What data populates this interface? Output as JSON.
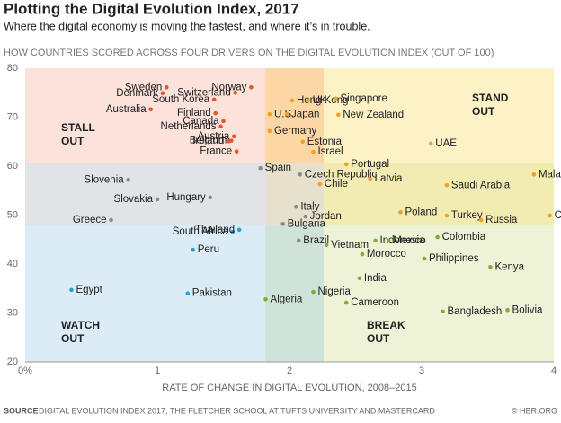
{
  "chart_data": {
    "type": "scatter",
    "title": "Plotting the Digital Evolution Index, 2017",
    "subtitle": "Where the digital economy is moving the fastest, and where it’s in trouble.",
    "header": "HOW COUNTRIES SCORED ACROSS FOUR DRIVERS ON THE DIGITAL EVOLUTION INDEX (OUT OF 100)",
    "xlabel": "RATE OF CHANGE IN DIGITAL EVOLUTION, 2008–2015",
    "source_label": "SOURCE",
    "source": "DIGITAL EVOLUTION INDEX 2017, THE FLETCHER SCHOOL AT TUFTS UNIVERSITY AND MASTERCARD",
    "credit": "© HBR.ORG",
    "xlim": [
      0,
      4
    ],
    "xticks": [
      {
        "value": 0,
        "label": "0%"
      },
      1,
      2,
      3,
      4
    ],
    "ylim": [
      20,
      80
    ],
    "yticks": [
      20,
      30,
      40,
      50,
      60,
      70,
      80
    ],
    "quadrants": [
      [
        "STALL",
        "OUT"
      ],
      [
        "STAND",
        "OUT"
      ],
      [
        "WATCH",
        "OUT"
      ],
      [
        "BREAK",
        "OUT"
      ]
    ],
    "series": [
      {
        "color": "#e2562c",
        "labels": [
          "Sweden",
          "Denmark",
          "Australia",
          "South Korea",
          "Switzerland",
          "Finland",
          "Norway",
          "Netherlands",
          "Canada",
          "Ireland",
          "Austria",
          "Belgium",
          "France"
        ],
        "x": [
          1.07,
          1.04,
          0.95,
          1.43,
          1.59,
          1.44,
          1.71,
          1.48,
          1.5,
          1.54,
          1.58,
          1.56,
          1.6
        ],
        "values": [
          76.1,
          74.9,
          71.6,
          73.6,
          75.0,
          70.8,
          76.1,
          68.1,
          69.2,
          65.1,
          66.1,
          65.2,
          63.0
        ]
      },
      {
        "color": "#f0a12a",
        "labels": [
          "Hong Kong",
          "UK",
          "U.S.",
          "Japan",
          "Germany",
          "Estonia",
          "Israel",
          "Singapore",
          "New Zealand",
          "UAE",
          "Portugal",
          "Malaysia",
          "Latvia",
          "Chile",
          "Saudi Arabia",
          "Poland",
          "Turkey",
          "China",
          "Russia"
        ],
        "x": [
          2.02,
          2.14,
          1.85,
          1.98,
          1.85,
          2.1,
          2.18,
          2.35,
          2.37,
          3.07,
          2.43,
          3.85,
          2.61,
          2.23,
          3.19,
          2.84,
          3.19,
          3.97,
          3.45
        ],
        "values": [
          73.4,
          73.4,
          70.6,
          70.6,
          67.2,
          65.0,
          62.9,
          73.8,
          70.5,
          64.6,
          60.4,
          58.3,
          57.4,
          56.3,
          56.1,
          50.6,
          49.9,
          49.9,
          49.0
        ]
      },
      {
        "color": "#8c8c8c",
        "labels": [
          "Slovenia",
          "Slovakia",
          "Hungary",
          "Greece",
          "Spain",
          "Czech Republic",
          "Italy",
          "Jordan",
          "Bulgaria",
          "Brazil"
        ],
        "x": [
          0.78,
          1.0,
          1.4,
          0.65,
          1.78,
          2.08,
          2.05,
          2.12,
          1.95,
          2.07
        ],
        "values": [
          57.2,
          53.2,
          53.6,
          49.0,
          59.6,
          58.3,
          51.7,
          49.7,
          48.2,
          44.8
        ]
      },
      {
        "color": "#2a9fd6",
        "labels": [
          "Egypt",
          "Pakistan",
          "Peru",
          "South Africa",
          "Thailand"
        ],
        "x": [
          0.35,
          1.23,
          1.27,
          1.57,
          1.62
        ],
        "values": [
          34.7,
          34.0,
          42.9,
          46.6,
          47.0
        ]
      },
      {
        "color": "#7fae35",
        "labels": [
          "Indonesia",
          "Mexico",
          "Colombia",
          "Vietnam",
          "Morocco",
          "Philippines",
          "Kenya",
          "India",
          "Nigeria",
          "Algeria",
          "Cameroon",
          "Bangladesh",
          "Bolivia"
        ],
        "x": [
          2.65,
          2.75,
          3.12,
          2.28,
          2.55,
          3.02,
          3.52,
          2.53,
          2.18,
          1.82,
          2.43,
          3.16,
          3.65
        ],
        "values": [
          44.8,
          44.8,
          45.5,
          43.9,
          42.0,
          41.1,
          39.4,
          37.1,
          34.3,
          32.8,
          32.1,
          30.3,
          30.6
        ]
      }
    ]
  }
}
